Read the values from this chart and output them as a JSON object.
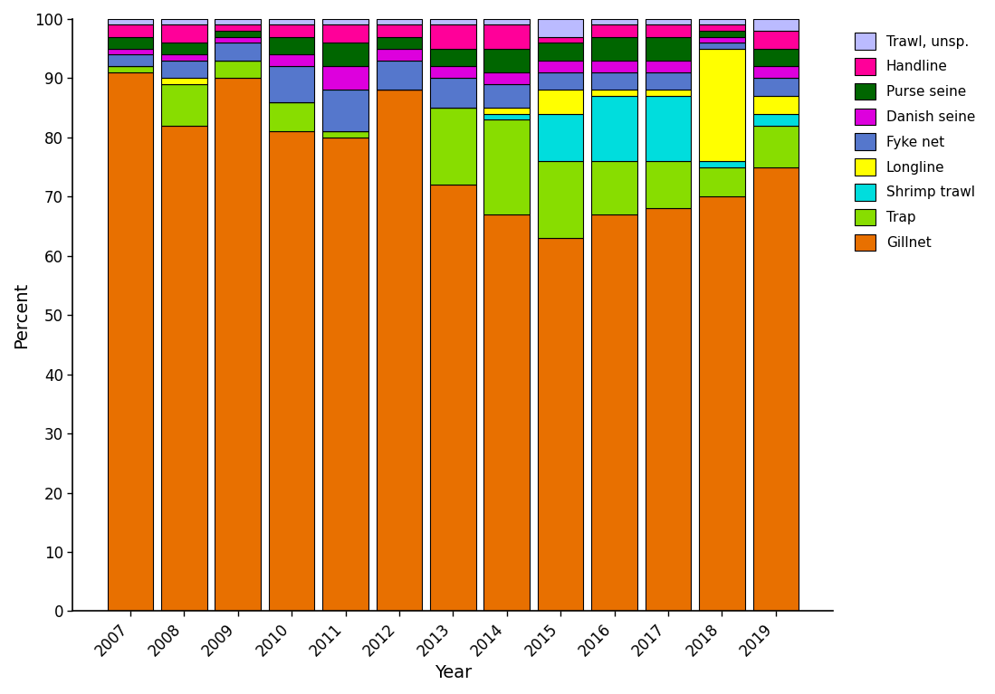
{
  "years": [
    2007,
    2008,
    2009,
    2010,
    2011,
    2012,
    2013,
    2014,
    2015,
    2016,
    2017,
    2018,
    2019
  ],
  "gears": [
    "Gillnet",
    "Trap",
    "Shrimp trawl",
    "Longline",
    "Fyke net",
    "Danish seine",
    "Purse seine",
    "Handline",
    "Trawl, unsp."
  ],
  "colors": [
    "#E87000",
    "#88DD00",
    "#00DDDD",
    "#FFFF00",
    "#5577CC",
    "#DD00DD",
    "#006600",
    "#FF0099",
    "#BBBBFF"
  ],
  "data": {
    "Gillnet": [
      91,
      82,
      90,
      81,
      80,
      88,
      72,
      67,
      63,
      67,
      68,
      70,
      75
    ],
    "Trap": [
      1,
      7,
      3,
      5,
      1,
      0,
      13,
      16,
      13,
      9,
      8,
      5,
      7
    ],
    "Shrimp trawl": [
      0,
      0,
      0,
      0,
      0,
      0,
      0,
      1,
      8,
      11,
      11,
      1,
      2
    ],
    "Longline": [
      0,
      1,
      0,
      0,
      0,
      0,
      0,
      1,
      4,
      1,
      1,
      19,
      3
    ],
    "Fyke net": [
      2,
      3,
      3,
      6,
      7,
      5,
      5,
      4,
      3,
      3,
      3,
      1,
      3
    ],
    "Danish seine": [
      1,
      1,
      1,
      2,
      4,
      2,
      2,
      2,
      2,
      2,
      2,
      1,
      2
    ],
    "Purse seine": [
      2,
      2,
      1,
      3,
      4,
      2,
      3,
      4,
      3,
      4,
      4,
      1,
      3
    ],
    "Handline": [
      2,
      3,
      1,
      2,
      3,
      2,
      4,
      4,
      1,
      2,
      2,
      1,
      3
    ],
    "Trawl, unsp.": [
      1,
      1,
      1,
      1,
      1,
      1,
      1,
      1,
      3,
      1,
      1,
      1,
      2
    ]
  },
  "xlabel": "Year",
  "ylabel": "Percent",
  "ylim": [
    0,
    100
  ],
  "yticks": [
    0,
    10,
    20,
    30,
    40,
    50,
    60,
    70,
    80,
    90,
    100
  ],
  "bar_edgecolor": "#000000",
  "bar_linewidth": 0.8,
  "figsize": [
    10.99,
    7.67
  ],
  "dpi": 100
}
